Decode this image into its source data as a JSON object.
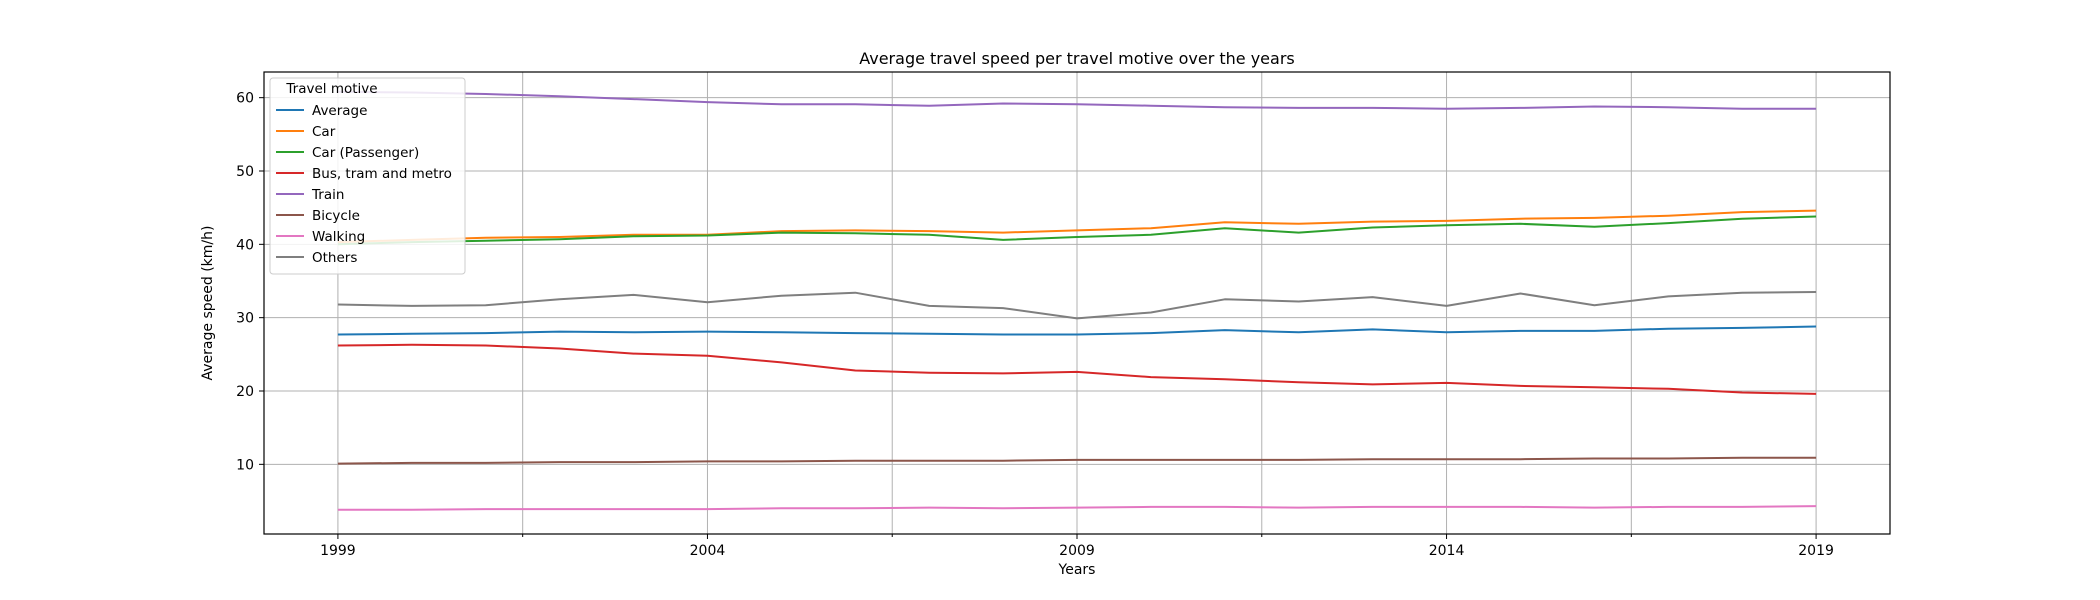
{
  "chart_data": {
    "type": "line",
    "title": "Average travel speed per travel motive over the years",
    "xlabel": "Years",
    "ylabel": "Average speed (km/h)",
    "xlim": [
      1998,
      2020
    ],
    "ylim": [
      0.5,
      63.5
    ],
    "xticks": [
      1999,
      2004,
      2009,
      2014,
      2019
    ],
    "minor_xticks": [
      2001.5,
      2006.5,
      2011.5,
      2016.5
    ],
    "yticks": [
      10,
      20,
      30,
      40,
      50,
      60
    ],
    "grid": true,
    "legend": {
      "title": "Travel motive",
      "placement": "upper-left"
    },
    "x": [
      1999,
      2000,
      2001,
      2002,
      2003,
      2004,
      2005,
      2006,
      2007,
      2008,
      2009,
      2010,
      2011,
      2012,
      2013,
      2014,
      2015,
      2016,
      2017,
      2018,
      2019
    ],
    "series": [
      {
        "name": "Average",
        "color": "#1f77b4",
        "values": [
          27.7,
          27.8,
          27.9,
          28.1,
          28.0,
          28.1,
          28.0,
          27.9,
          27.8,
          27.7,
          27.7,
          27.9,
          28.3,
          28.0,
          28.4,
          28.0,
          28.2,
          28.2,
          28.5,
          28.6,
          28.8
        ]
      },
      {
        "name": "Car",
        "color": "#ff7f0e",
        "values": [
          40.3,
          40.6,
          40.9,
          41.0,
          41.3,
          41.3,
          41.8,
          41.9,
          41.8,
          41.6,
          41.9,
          42.2,
          43.0,
          42.8,
          43.1,
          43.2,
          43.5,
          43.6,
          43.9,
          44.4,
          44.6
        ]
      },
      {
        "name": "Car (Passenger)",
        "color": "#2ca02c",
        "values": [
          40.0,
          40.3,
          40.5,
          40.7,
          41.1,
          41.2,
          41.6,
          41.5,
          41.3,
          40.6,
          41.0,
          41.3,
          42.2,
          41.6,
          42.3,
          42.6,
          42.8,
          42.4,
          42.9,
          43.5,
          43.8
        ]
      },
      {
        "name": "Bus, tram and metro",
        "color": "#d62728",
        "values": [
          26.2,
          26.3,
          26.2,
          25.8,
          25.1,
          24.8,
          23.9,
          22.8,
          22.5,
          22.4,
          22.6,
          21.9,
          21.6,
          21.2,
          20.9,
          21.1,
          20.7,
          20.5,
          20.3,
          19.8,
          19.6
        ]
      },
      {
        "name": "Train",
        "color": "#9467bd",
        "values": [
          60.8,
          60.7,
          60.5,
          60.2,
          59.8,
          59.4,
          59.1,
          59.1,
          58.9,
          59.2,
          59.1,
          58.9,
          58.7,
          58.6,
          58.6,
          58.5,
          58.6,
          58.8,
          58.7,
          58.5,
          58.5
        ]
      },
      {
        "name": "Bicycle",
        "color": "#8c564b",
        "values": [
          10.1,
          10.2,
          10.2,
          10.3,
          10.3,
          10.4,
          10.4,
          10.5,
          10.5,
          10.5,
          10.6,
          10.6,
          10.6,
          10.6,
          10.7,
          10.7,
          10.7,
          10.8,
          10.8,
          10.9,
          10.9
        ]
      },
      {
        "name": "Walking",
        "color": "#e377c2",
        "values": [
          3.8,
          3.8,
          3.9,
          3.9,
          3.9,
          3.9,
          4.0,
          4.0,
          4.1,
          4.0,
          4.1,
          4.2,
          4.2,
          4.1,
          4.2,
          4.2,
          4.2,
          4.1,
          4.2,
          4.2,
          4.3
        ]
      },
      {
        "name": "Others",
        "color": "#7f7f7f",
        "values": [
          31.8,
          31.6,
          31.7,
          32.5,
          33.1,
          32.1,
          33.0,
          33.4,
          31.6,
          31.3,
          29.9,
          30.7,
          32.5,
          32.2,
          32.8,
          31.6,
          33.3,
          31.7,
          32.9,
          33.4,
          33.5
        ]
      }
    ]
  }
}
